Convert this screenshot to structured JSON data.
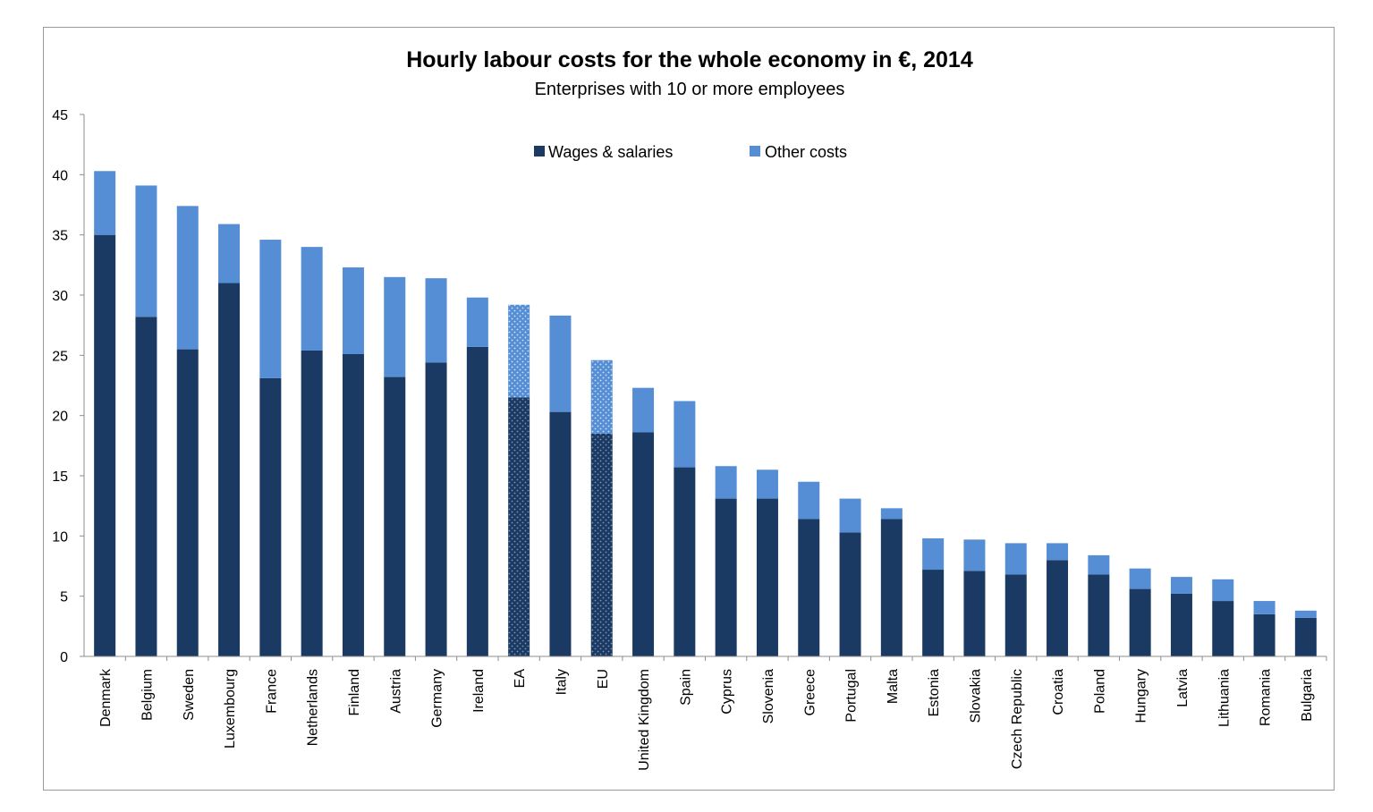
{
  "chart_data": {
    "type": "bar",
    "stacked": true,
    "title": "Hourly labour costs for the whole economy in €, 2014",
    "subtitle": "Enterprises with 10 or more employees",
    "xlabel": "",
    "ylabel": "",
    "ylim": [
      0,
      45
    ],
    "yticks": [
      0,
      5,
      10,
      15,
      20,
      25,
      30,
      35,
      40,
      45
    ],
    "grid": false,
    "legend_position": "top-center",
    "categories": [
      "Denmark",
      "Belgium",
      "Sweden",
      "Luxembourg",
      "France",
      "Netherlands",
      "Finland",
      "Austria",
      "Germany",
      "Ireland",
      "EA",
      "Italy",
      "EU",
      "United Kingdom",
      "Spain",
      "Cyprus",
      "Slovenia",
      "Greece",
      "Portugal",
      "Malta",
      "Estonia",
      "Slovakia",
      "Czech Republic",
      "Croatia",
      "Poland",
      "Hungary",
      "Latvia",
      "Lithuania",
      "Romania",
      "Bulgaria"
    ],
    "highlighted_categories": [
      "EA",
      "EU"
    ],
    "series": [
      {
        "name": "Wages & salaries",
        "color": "#1b3a63",
        "values": [
          35.0,
          28.2,
          25.5,
          31.0,
          23.1,
          25.4,
          25.1,
          23.2,
          24.4,
          25.7,
          21.5,
          20.3,
          18.5,
          18.6,
          15.7,
          13.1,
          13.1,
          11.4,
          10.3,
          11.4,
          7.2,
          7.1,
          6.8,
          8.0,
          6.8,
          5.6,
          5.2,
          4.6,
          3.5,
          3.2
        ]
      },
      {
        "name": "Other costs",
        "color": "#558ed5",
        "values": [
          5.3,
          10.9,
          11.9,
          4.9,
          11.5,
          8.6,
          7.2,
          8.3,
          7.0,
          4.1,
          7.7,
          8.0,
          6.1,
          3.7,
          5.5,
          2.7,
          2.4,
          3.1,
          2.8,
          0.9,
          2.6,
          2.6,
          2.6,
          1.4,
          1.6,
          1.7,
          1.4,
          1.8,
          1.1,
          0.6
        ]
      }
    ]
  }
}
